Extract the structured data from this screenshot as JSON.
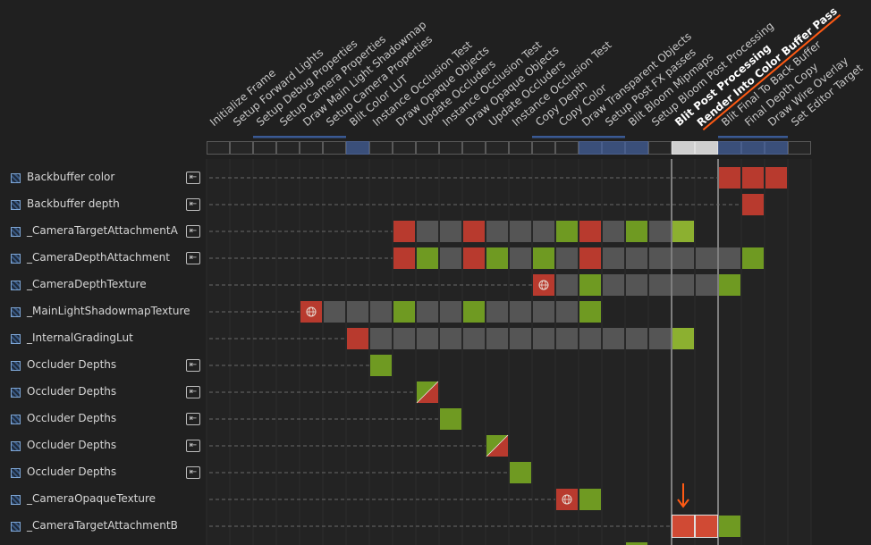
{
  "colors": {
    "background": "#202020",
    "cell_write": "#b83a2e",
    "cell_read": "#6f9a22",
    "cell_read_bright": "#8cb030",
    "cell_idle": "#555555",
    "pass_selected": "#cfcfcf",
    "pass_merged": "#3a4f7a",
    "highlight_accent": "#ff5a14"
  },
  "passes": [
    {
      "label": "Initialize Frame"
    },
    {
      "label": "Setup Forward Lights"
    },
    {
      "label": "Setup Debug Properties",
      "merged": true
    },
    {
      "label": "Setup Camera Properties",
      "merged": true
    },
    {
      "label": "Draw Main Light Shadowmap",
      "merged": true
    },
    {
      "label": "Setup Camera Properties",
      "merged": true
    },
    {
      "label": "Blit Color LUT",
      "native": true
    },
    {
      "label": "Instance Occlusion Test"
    },
    {
      "label": "Draw Opaque Objects"
    },
    {
      "label": "Update Occluders"
    },
    {
      "label": "Instance Occlusion Test"
    },
    {
      "label": "Draw Opaque Objects"
    },
    {
      "label": "Update Occluders"
    },
    {
      "label": "Instance Occlusion Test"
    },
    {
      "label": "Copy Depth",
      "merged": true
    },
    {
      "label": "Copy Color",
      "merged": true
    },
    {
      "label": "Draw Transparent Objects",
      "native": true,
      "merged": true
    },
    {
      "label": "Setup Post FX passes",
      "native": true,
      "merged": true
    },
    {
      "label": "Blit Bloom Mipmaps",
      "native": true
    },
    {
      "label": "Setup Bloom Post Processing"
    },
    {
      "label": "Blit Post Processing",
      "bold": true,
      "selected": true
    },
    {
      "label": "Render Into Color Buffer Pass",
      "bold": true,
      "selected": true,
      "underline": true
    },
    {
      "label": "Blit Final To Back Buffer",
      "native": true,
      "merged": true
    },
    {
      "label": "Final Depth Copy",
      "native": true,
      "merged": true
    },
    {
      "label": "Draw Wire Overlay",
      "native": true,
      "merged": true
    },
    {
      "label": "Set Editor Target"
    }
  ],
  "resources": [
    {
      "name": "Backbuffer color",
      "imported": true,
      "line_to": 22,
      "cells": [
        {
          "i": 22,
          "t": "w"
        },
        {
          "i": 23,
          "t": "w"
        },
        {
          "i": 24,
          "t": "w"
        }
      ]
    },
    {
      "name": "Backbuffer depth",
      "imported": true,
      "line_to": 23,
      "cells": [
        {
          "i": 23,
          "t": "w"
        }
      ]
    },
    {
      "name": "_CameraTargetAttachmentA",
      "imported": true,
      "line_to": 8,
      "cells": [
        {
          "i": 8,
          "t": "w"
        },
        {
          "i": 9,
          "t": "n"
        },
        {
          "i": 10,
          "t": "n"
        },
        {
          "i": 11,
          "t": "w"
        },
        {
          "i": 12,
          "t": "n"
        },
        {
          "i": 13,
          "t": "n"
        },
        {
          "i": 14,
          "t": "n"
        },
        {
          "i": 15,
          "t": "r"
        },
        {
          "i": 16,
          "t": "w"
        },
        {
          "i": 17,
          "t": "n"
        },
        {
          "i": 18,
          "t": "r"
        },
        {
          "i": 19,
          "t": "n"
        },
        {
          "i": 20,
          "t": "R"
        }
      ]
    },
    {
      "name": "_CameraDepthAttachment",
      "imported": true,
      "line_to": 8,
      "cells": [
        {
          "i": 8,
          "t": "w"
        },
        {
          "i": 9,
          "t": "r"
        },
        {
          "i": 10,
          "t": "n"
        },
        {
          "i": 11,
          "t": "w"
        },
        {
          "i": 12,
          "t": "r"
        },
        {
          "i": 13,
          "t": "n"
        },
        {
          "i": 14,
          "t": "r"
        },
        {
          "i": 15,
          "t": "n"
        },
        {
          "i": 16,
          "t": "w"
        },
        {
          "i": 17,
          "t": "n"
        },
        {
          "i": 18,
          "t": "n"
        },
        {
          "i": 19,
          "t": "n"
        },
        {
          "i": 20,
          "t": "n"
        },
        {
          "i": 21,
          "t": "n"
        },
        {
          "i": 22,
          "t": "n"
        },
        {
          "i": 23,
          "t": "r"
        }
      ]
    },
    {
      "name": "_CameraDepthTexture",
      "imported": false,
      "line_to": 14,
      "cells": [
        {
          "i": 14,
          "t": "wg"
        },
        {
          "i": 15,
          "t": "n"
        },
        {
          "i": 16,
          "t": "r"
        },
        {
          "i": 17,
          "t": "n"
        },
        {
          "i": 18,
          "t": "n"
        },
        {
          "i": 19,
          "t": "n"
        },
        {
          "i": 20,
          "t": "n"
        },
        {
          "i": 21,
          "t": "n"
        },
        {
          "i": 22,
          "t": "r"
        }
      ]
    },
    {
      "name": "_MainLightShadowmapTexture",
      "imported": false,
      "line_to": 4,
      "cells": [
        {
          "i": 4,
          "t": "wg"
        },
        {
          "i": 5,
          "t": "n"
        },
        {
          "i": 6,
          "t": "n"
        },
        {
          "i": 7,
          "t": "n"
        },
        {
          "i": 8,
          "t": "r"
        },
        {
          "i": 9,
          "t": "n"
        },
        {
          "i": 10,
          "t": "n"
        },
        {
          "i": 11,
          "t": "r"
        },
        {
          "i": 12,
          "t": "n"
        },
        {
          "i": 13,
          "t": "n"
        },
        {
          "i": 14,
          "t": "n"
        },
        {
          "i": 15,
          "t": "n"
        },
        {
          "i": 16,
          "t": "r"
        }
      ]
    },
    {
      "name": "_InternalGradingLut",
      "imported": false,
      "line_to": 6,
      "cells": [
        {
          "i": 6,
          "t": "w"
        },
        {
          "i": 7,
          "t": "n"
        },
        {
          "i": 8,
          "t": "n"
        },
        {
          "i": 9,
          "t": "n"
        },
        {
          "i": 10,
          "t": "n"
        },
        {
          "i": 11,
          "t": "n"
        },
        {
          "i": 12,
          "t": "n"
        },
        {
          "i": 13,
          "t": "n"
        },
        {
          "i": 14,
          "t": "n"
        },
        {
          "i": 15,
          "t": "n"
        },
        {
          "i": 16,
          "t": "n"
        },
        {
          "i": 17,
          "t": "n"
        },
        {
          "i": 18,
          "t": "n"
        },
        {
          "i": 19,
          "t": "n"
        },
        {
          "i": 20,
          "t": "R"
        }
      ]
    },
    {
      "name": "Occluder Depths",
      "imported": true,
      "line_to": 7,
      "cells": [
        {
          "i": 7,
          "t": "r"
        }
      ]
    },
    {
      "name": "Occluder Depths",
      "imported": true,
      "line_to": 9,
      "cells": [
        {
          "i": 9,
          "t": "rw"
        }
      ]
    },
    {
      "name": "Occluder Depths",
      "imported": true,
      "line_to": 10,
      "cells": [
        {
          "i": 10,
          "t": "r"
        }
      ]
    },
    {
      "name": "Occluder Depths",
      "imported": true,
      "line_to": 12,
      "cells": [
        {
          "i": 12,
          "t": "rw"
        }
      ]
    },
    {
      "name": "Occluder Depths",
      "imported": true,
      "line_to": 13,
      "cells": [
        {
          "i": 13,
          "t": "r"
        }
      ]
    },
    {
      "name": "_CameraOpaqueTexture",
      "imported": false,
      "line_to": 15,
      "cells": [
        {
          "i": 15,
          "t": "wg"
        },
        {
          "i": 16,
          "t": "r"
        }
      ]
    },
    {
      "name": "_CameraTargetAttachmentB",
      "imported": false,
      "line_to": 20,
      "cells": [
        {
          "i": 20,
          "t": "wb"
        },
        {
          "i": 21,
          "t": "wb"
        },
        {
          "i": 22,
          "t": "r"
        }
      ]
    },
    {
      "name": "",
      "imported": false,
      "line_to": 18,
      "cells": [
        {
          "i": 18,
          "t": "r"
        }
      ]
    }
  ]
}
